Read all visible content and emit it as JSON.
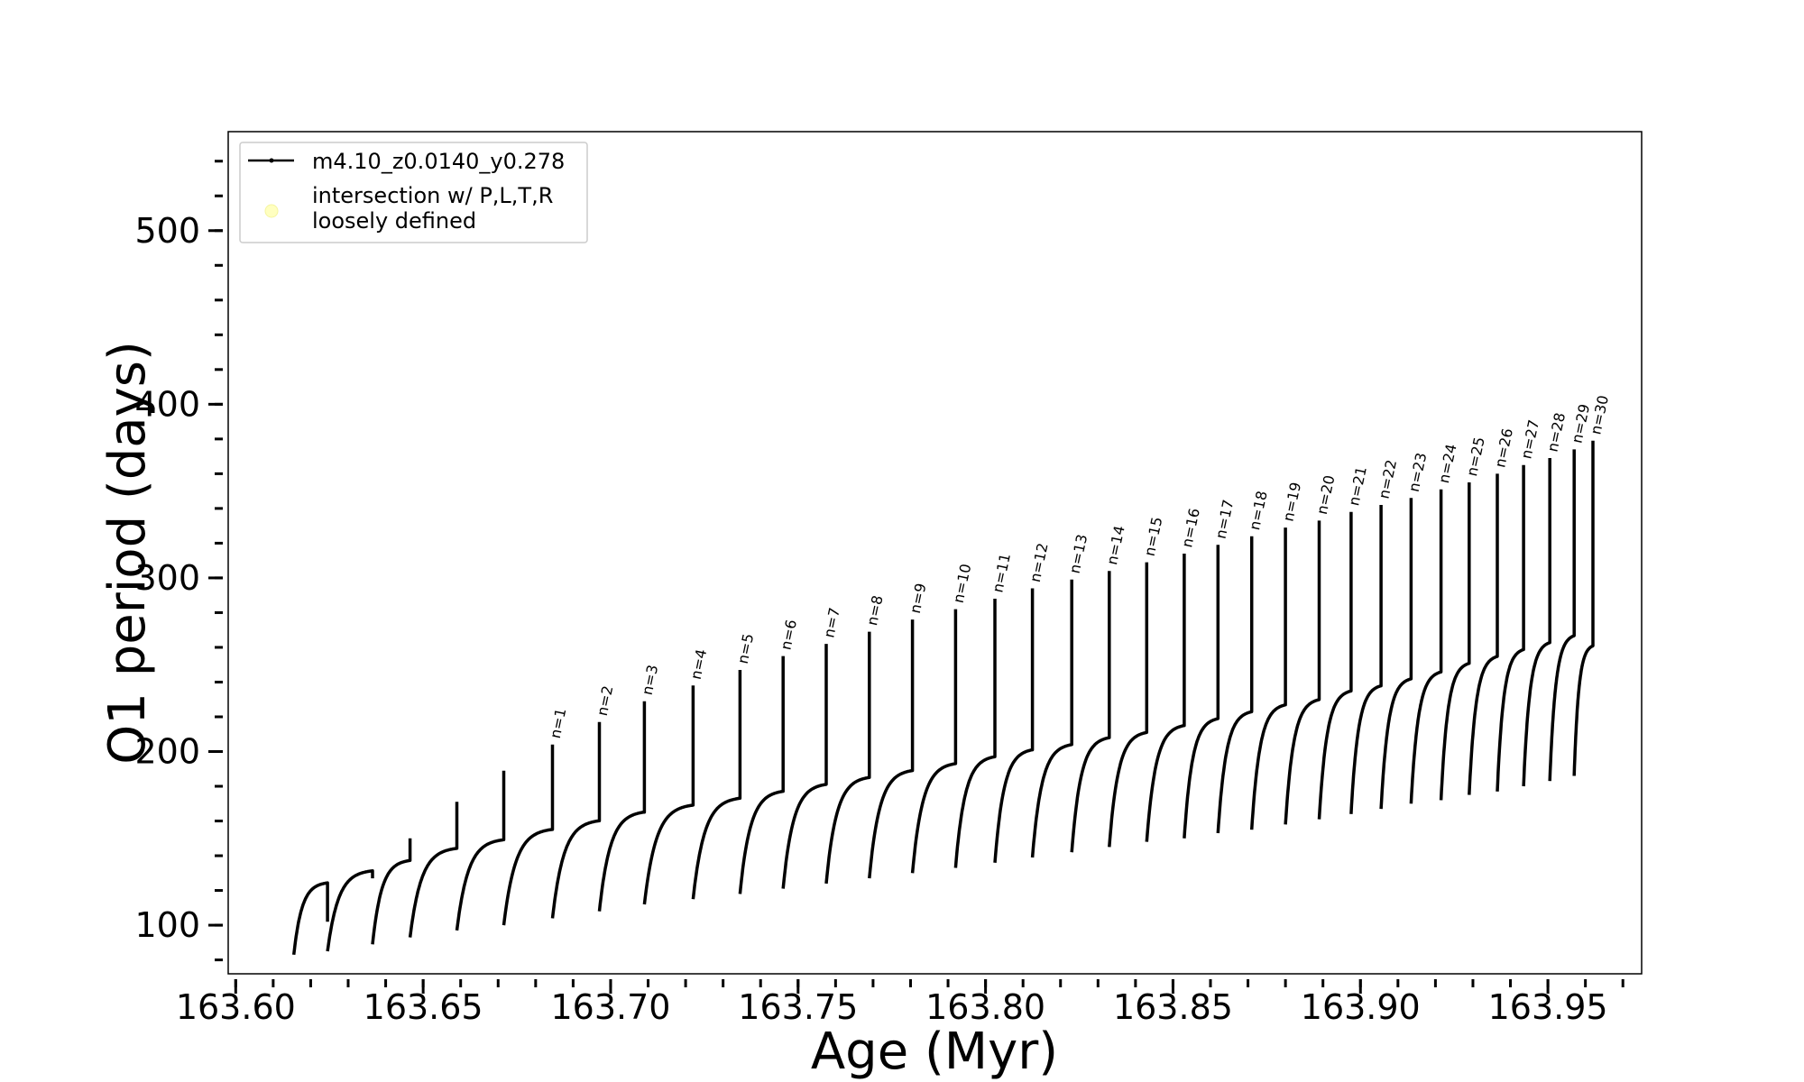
{
  "chart_data": {
    "type": "line",
    "title": "",
    "xlabel": "Age (Myr)",
    "ylabel": "O1 period (days)",
    "xlim": [
      163.598,
      163.975
    ],
    "ylim": [
      72,
      557
    ],
    "xticks": [
      163.6,
      163.65,
      163.7,
      163.75,
      163.8,
      163.85,
      163.9,
      163.95
    ],
    "xtick_labels": [
      "163.60",
      "163.65",
      "163.70",
      "163.75",
      "163.80",
      "163.85",
      "163.90",
      "163.95"
    ],
    "yticks": [
      100,
      200,
      300,
      400,
      500
    ],
    "ytick_labels": [
      "100",
      "200",
      "300",
      "400",
      "500"
    ],
    "x_minor_step": 0.01,
    "y_minor_step": 20,
    "grid": false,
    "legend": {
      "placement": "upper-left",
      "entries": [
        {
          "label": "m4.10_z0.0140_y0.278",
          "marker": "line-dot",
          "color": "#000000"
        },
        {
          "label_lines": [
            "intersection w/ P,L,T,R",
            "loosely defined"
          ],
          "marker": "circle",
          "color": "#ffffc0"
        }
      ]
    },
    "series": [
      {
        "name": "m4.10_z0.0140_y0.278",
        "color": "#000000",
        "cycles": [
          {
            "n": null,
            "x0": 163.6155,
            "x1": 163.6245,
            "min": 83,
            "plateau": 125,
            "peak": 102
          },
          {
            "n": null,
            "x0": 163.6245,
            "x1": 163.6365,
            "min": 85,
            "plateau": 132,
            "peak": 127
          },
          {
            "n": null,
            "x0": 163.6365,
            "x1": 163.6465,
            "min": 89,
            "plateau": 138,
            "peak": 150
          },
          {
            "n": null,
            "x0": 163.6465,
            "x1": 163.659,
            "min": 93,
            "plateau": 145,
            "peak": 171
          },
          {
            "n": null,
            "x0": 163.659,
            "x1": 163.6715,
            "min": 97,
            "plateau": 150,
            "peak": 189
          },
          {
            "n": "n=1",
            "x0": 163.6715,
            "x1": 163.6845,
            "min": 100,
            "plateau": 156,
            "peak": 204
          },
          {
            "n": "n=2",
            "x0": 163.6845,
            "x1": 163.697,
            "min": 104,
            "plateau": 161,
            "peak": 217
          },
          {
            "n": "n=3",
            "x0": 163.697,
            "x1": 163.709,
            "min": 108,
            "plateau": 166,
            "peak": 229
          },
          {
            "n": "n=4",
            "x0": 163.709,
            "x1": 163.722,
            "min": 112,
            "plateau": 170,
            "peak": 238
          },
          {
            "n": "n=5",
            "x0": 163.722,
            "x1": 163.7345,
            "min": 115,
            "plateau": 174,
            "peak": 247
          },
          {
            "n": "n=6",
            "x0": 163.7345,
            "x1": 163.746,
            "min": 118,
            "plateau": 178,
            "peak": 255
          },
          {
            "n": "n=7",
            "x0": 163.746,
            "x1": 163.7575,
            "min": 121,
            "plateau": 182,
            "peak": 262
          },
          {
            "n": "n=8",
            "x0": 163.7575,
            "x1": 163.769,
            "min": 124,
            "plateau": 186,
            "peak": 269
          },
          {
            "n": "n=9",
            "x0": 163.769,
            "x1": 163.7805,
            "min": 127,
            "plateau": 190,
            "peak": 276
          },
          {
            "n": "n=10",
            "x0": 163.7805,
            "x1": 163.792,
            "min": 130,
            "plateau": 194,
            "peak": 282
          },
          {
            "n": "n=11",
            "x0": 163.792,
            "x1": 163.8025,
            "min": 133,
            "plateau": 198,
            "peak": 288
          },
          {
            "n": "n=12",
            "x0": 163.8025,
            "x1": 163.8125,
            "min": 136,
            "plateau": 202,
            "peak": 294
          },
          {
            "n": "n=13",
            "x0": 163.8125,
            "x1": 163.823,
            "min": 139,
            "plateau": 205,
            "peak": 299
          },
          {
            "n": "n=14",
            "x0": 163.823,
            "x1": 163.833,
            "min": 142,
            "plateau": 209,
            "peak": 304
          },
          {
            "n": "n=15",
            "x0": 163.833,
            "x1": 163.843,
            "min": 145,
            "plateau": 212,
            "peak": 309
          },
          {
            "n": "n=16",
            "x0": 163.843,
            "x1": 163.853,
            "min": 148,
            "plateau": 216,
            "peak": 314
          },
          {
            "n": "n=17",
            "x0": 163.853,
            "x1": 163.862,
            "min": 150,
            "plateau": 220,
            "peak": 319
          },
          {
            "n": "n=18",
            "x0": 163.862,
            "x1": 163.871,
            "min": 153,
            "plateau": 224,
            "peak": 324
          },
          {
            "n": "n=19",
            "x0": 163.871,
            "x1": 163.88,
            "min": 155,
            "plateau": 228,
            "peak": 329
          },
          {
            "n": "n=20",
            "x0": 163.88,
            "x1": 163.889,
            "min": 158,
            "plateau": 231,
            "peak": 333
          },
          {
            "n": "n=21",
            "x0": 163.889,
            "x1": 163.8975,
            "min": 161,
            "plateau": 236,
            "peak": 338
          },
          {
            "n": "n=22",
            "x0": 163.8975,
            "x1": 163.9055,
            "min": 164,
            "plateau": 239,
            "peak": 342
          },
          {
            "n": "n=23",
            "x0": 163.9055,
            "x1": 163.9135,
            "min": 167,
            "plateau": 243,
            "peak": 346
          },
          {
            "n": "n=24",
            "x0": 163.9135,
            "x1": 163.9215,
            "min": 170,
            "plateau": 247,
            "peak": 351
          },
          {
            "n": "n=25",
            "x0": 163.9215,
            "x1": 163.929,
            "min": 172,
            "plateau": 252,
            "peak": 355
          },
          {
            "n": "n=26",
            "x0": 163.929,
            "x1": 163.9365,
            "min": 175,
            "plateau": 256,
            "peak": 360
          },
          {
            "n": "n=27",
            "x0": 163.9365,
            "x1": 163.9435,
            "min": 177,
            "plateau": 260,
            "peak": 365
          },
          {
            "n": "n=28",
            "x0": 163.9435,
            "x1": 163.9505,
            "min": 180,
            "plateau": 264,
            "peak": 369
          },
          {
            "n": "n=29",
            "x0": 163.9505,
            "x1": 163.957,
            "min": 183,
            "plateau": 268,
            "peak": 374
          },
          {
            "n": "n=30",
            "x0": 163.957,
            "x1": 163.962,
            "min": 186,
            "plateau": 262,
            "peak": 379
          }
        ]
      }
    ]
  }
}
